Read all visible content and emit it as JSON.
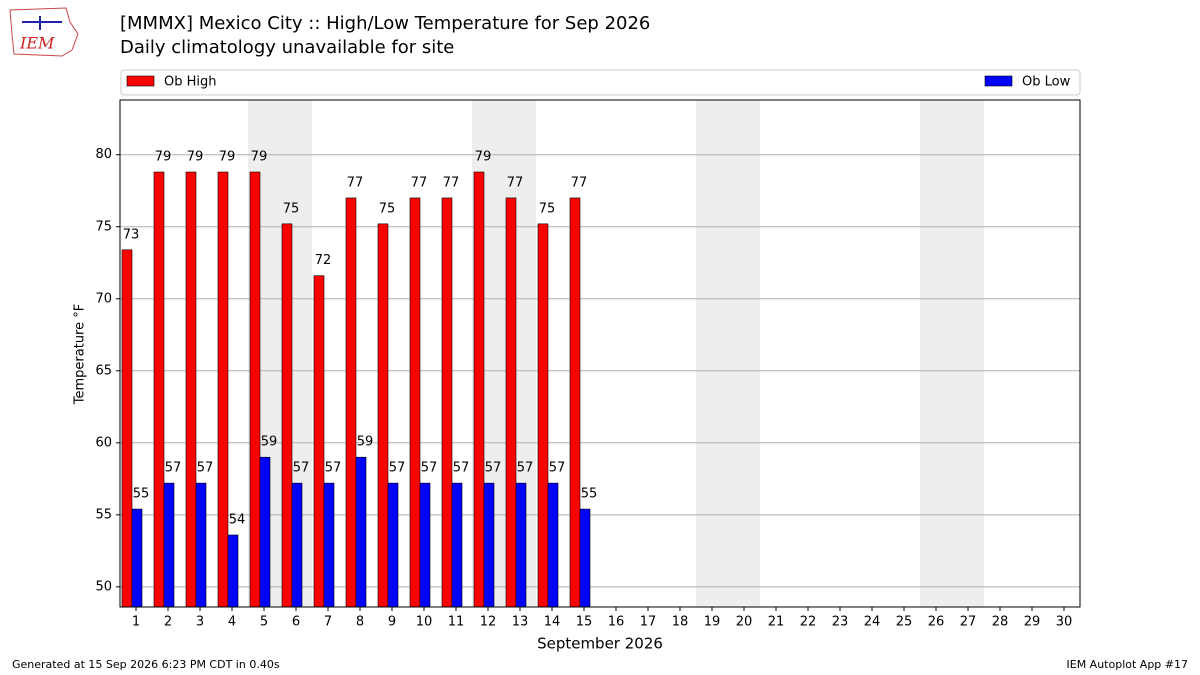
{
  "logo": "IEM",
  "footer": {
    "left": "Generated at 15 Sep 2026 6:23 PM CDT in 0.40s",
    "right": "IEM Autoplot App #17"
  },
  "chart_data": {
    "type": "bar",
    "title": "[MMMX] Mexico City :: High/Low Temperature for Sep 2026",
    "subtitle": "Daily climatology unavailable for site",
    "xlabel": "September 2026",
    "ylabel": "Temperature °F",
    "categories": [
      "1",
      "2",
      "3",
      "4",
      "5",
      "6",
      "7",
      "8",
      "9",
      "10",
      "11",
      "12",
      "13",
      "14",
      "15",
      "16",
      "17",
      "18",
      "19",
      "20",
      "21",
      "22",
      "23",
      "24",
      "25",
      "26",
      "27",
      "28",
      "29",
      "30"
    ],
    "series": [
      {
        "name": "Ob High",
        "color": "#ff0000",
        "values": [
          73.4,
          78.8,
          78.8,
          78.8,
          78.8,
          75.2,
          71.6,
          77,
          75.2,
          77,
          77,
          78.8,
          77,
          75.2,
          77,
          null,
          null,
          null,
          null,
          null,
          null,
          null,
          null,
          null,
          null,
          null,
          null,
          null,
          null,
          null
        ],
        "value_labels": [
          "73",
          "79",
          "79",
          "79",
          "79",
          "75",
          "72",
          "77",
          "75",
          "77",
          "77",
          "79",
          "77",
          "75",
          "77",
          null,
          null,
          null,
          null,
          null,
          null,
          null,
          null,
          null,
          null,
          null,
          null,
          null,
          null,
          null
        ]
      },
      {
        "name": "Ob Low",
        "color": "#0000ff",
        "values": [
          55.4,
          57.2,
          57.2,
          53.6,
          59,
          57.2,
          57.2,
          59,
          57.2,
          57.2,
          57.2,
          57.2,
          57.2,
          57.2,
          55.4,
          null,
          null,
          null,
          null,
          null,
          null,
          null,
          null,
          null,
          null,
          null,
          null,
          null,
          null,
          null
        ],
        "value_labels": [
          "55",
          "57",
          "57",
          "54",
          "59",
          "57",
          "57",
          "59",
          "57",
          "57",
          "57",
          "57",
          "57",
          "57",
          "55",
          null,
          null,
          null,
          null,
          null,
          null,
          null,
          null,
          null,
          null,
          null,
          null,
          null,
          null,
          null
        ]
      }
    ],
    "ylim": [
      48.6,
      83.8
    ],
    "yticks": [
      50,
      55,
      60,
      65,
      70,
      75,
      80
    ],
    "grid": true
  }
}
